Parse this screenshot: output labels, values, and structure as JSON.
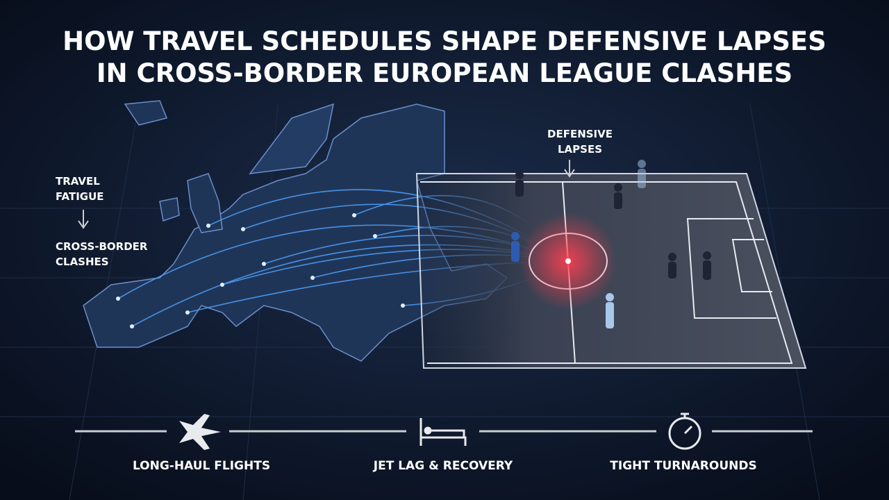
{
  "header": {
    "title": [
      "HOW TRAVEL SCHEDULES SHAPE DEFENSIVE LAPSES",
      "IN CROSS-BORDER EUROPEAN LEAGUE CLASHES"
    ]
  },
  "annotations": {
    "travel_fatigue": [
      "TRAVEL",
      "FATIGUE"
    ],
    "cross_border": [
      "CROSS-BORDER",
      "CLASHES"
    ],
    "defensive_lapses": [
      "DEFENSIVE",
      "LAPSES"
    ]
  },
  "timeline": [
    {
      "label": "LONG-HAUL FLIGHTS"
    },
    {
      "label": "JET LAG & RECOVERY"
    },
    {
      "label": "TIGHT TURNAROUNDS"
    }
  ]
}
